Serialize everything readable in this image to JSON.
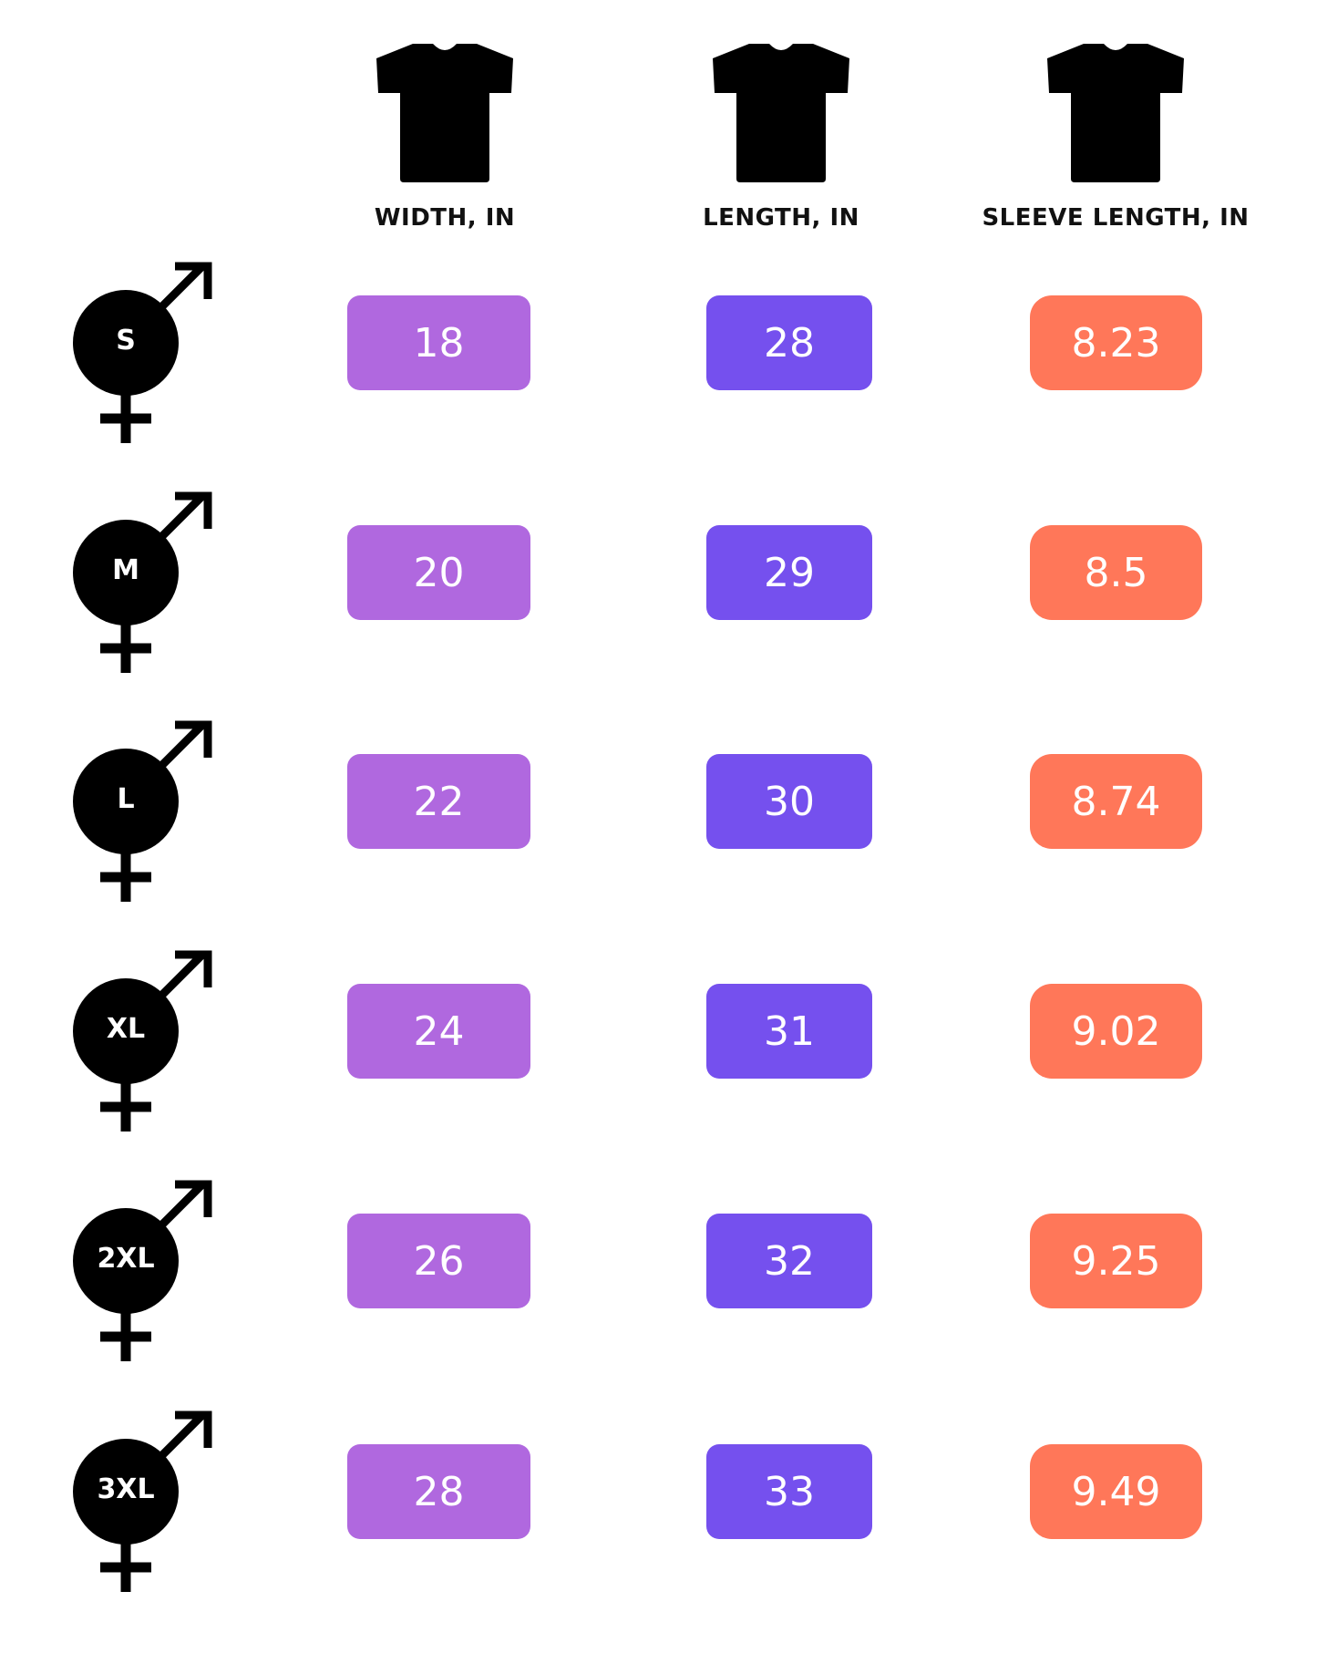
{
  "colors": {
    "width": "#B068DF",
    "length": "#7550EE",
    "sleeve": "#FF7759",
    "icon": "#000000"
  },
  "columns": [
    {
      "label": "WIDTH, IN",
      "icon": "tshirt-icon"
    },
    {
      "label": "LENGTH, IN",
      "icon": "tshirt-icon"
    },
    {
      "label": "SLEEVE LENGTH, IN",
      "icon": "tshirt-icon"
    }
  ],
  "rows": [
    {
      "size": "S",
      "icon": "unisex-symbol-icon",
      "width": "18",
      "length": "28",
      "sleeve": "8.23"
    },
    {
      "size": "M",
      "icon": "unisex-symbol-icon",
      "width": "20",
      "length": "29",
      "sleeve": "8.5"
    },
    {
      "size": "L",
      "icon": "unisex-symbol-icon",
      "width": "22",
      "length": "30",
      "sleeve": "8.74"
    },
    {
      "size": "XL",
      "icon": "unisex-symbol-icon",
      "width": "24",
      "length": "31",
      "sleeve": "9.02"
    },
    {
      "size": "2XL",
      "icon": "unisex-symbol-icon",
      "width": "26",
      "length": "32",
      "sleeve": "9.25"
    },
    {
      "size": "3XL",
      "icon": "unisex-symbol-icon",
      "width": "28",
      "length": "33",
      "sleeve": "9.49"
    }
  ]
}
